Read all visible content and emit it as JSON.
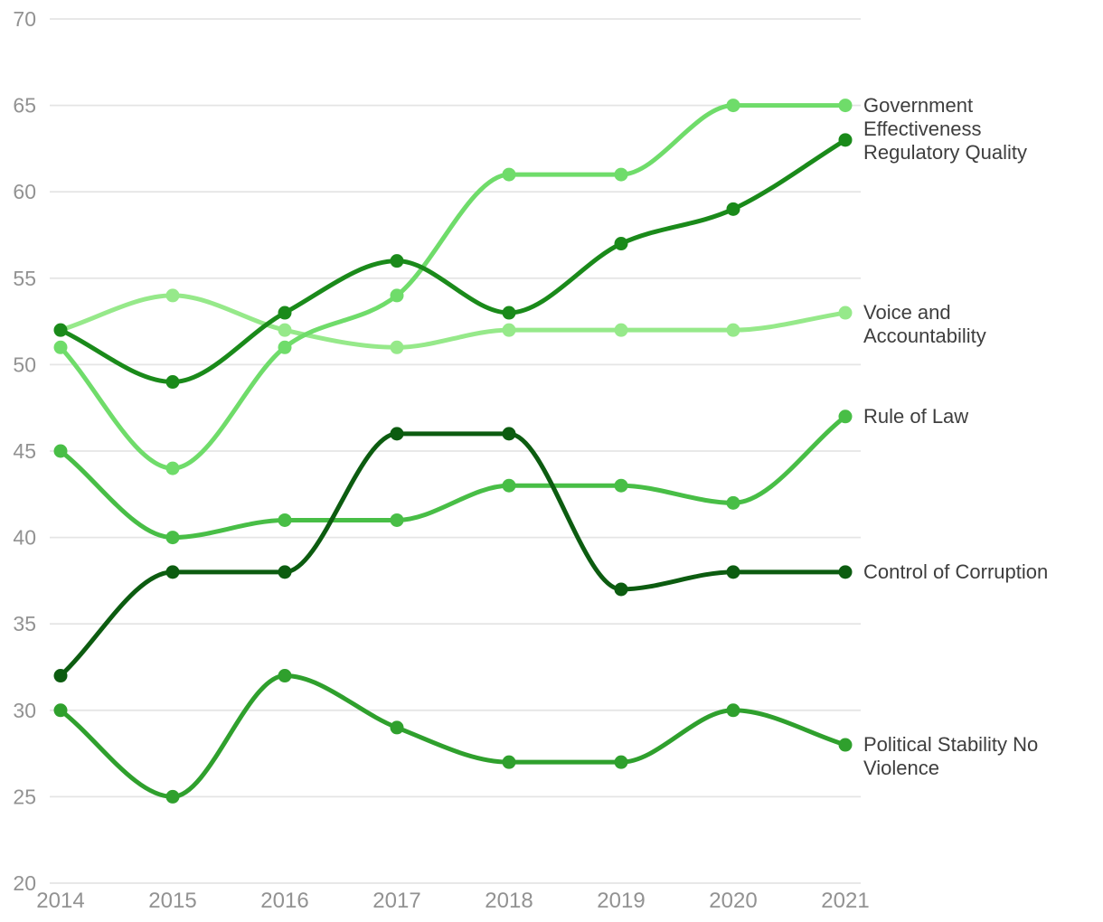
{
  "chart_data": {
    "type": "line",
    "title": "",
    "xlabel": "",
    "ylabel": "",
    "x_categories": [
      "2014",
      "2015",
      "2016",
      "2017",
      "2018",
      "2019",
      "2020",
      "2021"
    ],
    "y_ticks": [
      70,
      65,
      60,
      55,
      50,
      45,
      40,
      35,
      30,
      25,
      20
    ],
    "ylim": [
      20,
      70
    ],
    "grid": "horizontal-only",
    "line_style": "smoothed-monotone",
    "legend_position": "right-end-of-line-labels",
    "marker": "circle",
    "series": [
      {
        "name": "Voice and Accountability",
        "color": "#96E98A",
        "values": [
          52,
          54,
          52,
          51,
          52,
          52,
          52,
          53
        ]
      },
      {
        "name": "Political Stability No Violence",
        "color": "#2FA02D",
        "values": [
          30,
          25,
          32,
          29,
          27,
          27,
          30,
          28
        ]
      },
      {
        "name": "Government Effectiveness",
        "color": "#6FDC6A",
        "values": [
          51,
          44,
          51,
          54,
          61,
          61,
          65,
          65
        ]
      },
      {
        "name": "Regulatory Quality",
        "color": "#1A8A1A",
        "values": [
          52,
          49,
          53,
          56,
          53,
          57,
          59,
          63
        ]
      },
      {
        "name": "Rule of Law",
        "color": "#48BE46",
        "values": [
          45,
          40,
          41,
          41,
          43,
          43,
          42,
          47
        ]
      },
      {
        "name": "Control of Corruption",
        "color": "#0C5C10",
        "values": [
          32,
          38,
          38,
          46,
          46,
          37,
          38,
          38
        ]
      }
    ],
    "colors": {
      "axis_text": "#929292",
      "grid_line": "#E5E5E5",
      "series_label_text": "#3E3E3E",
      "background": "#FFFFFF"
    }
  }
}
